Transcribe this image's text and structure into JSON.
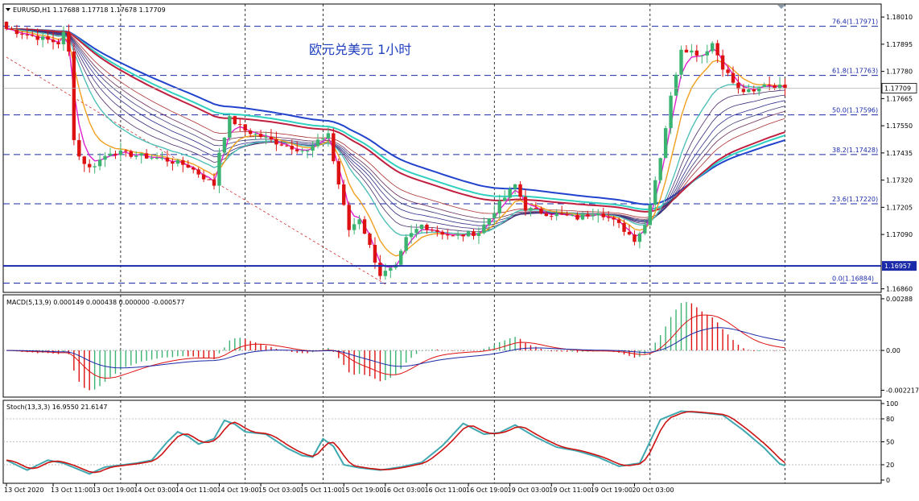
{
  "symbol_header": "EURUSD,H1  1.17688 1.17718 1.17678 1.17709",
  "chinese_title": "欧元兑美元  1小时",
  "colors": {
    "bull": "#3cb371",
    "bear": "#dd1111",
    "fib": "#1a2aa8",
    "ema_fast": "#dd22cc",
    "ema_orange": "#f0a020",
    "ema_teal": "#50c0b8",
    "ma_red": "#c02040",
    "ma_blue": "#2244cc",
    "macd_signal": "#dd1111",
    "macd_main": "#1a2aa8",
    "stoch_main": "#40a8b0",
    "stoch_signal": "#cc1111"
  },
  "chart_data": [
    {
      "type": "candlestick",
      "title": "EURUSD,H1",
      "ylim": [
        1.16845,
        1.18065
      ],
      "yticks": [
        "1.18010",
        "1.17895",
        "1.17780",
        "1.17665",
        "1.17550",
        "1.17435",
        "1.17320",
        "1.17205",
        "1.17090",
        "1.16860"
      ],
      "ytick_values": [
        1.1801,
        1.17895,
        1.1778,
        1.17665,
        1.1755,
        1.17435,
        1.1732,
        1.17205,
        1.1709,
        1.1686
      ],
      "current_price": "1.17709",
      "current_value": 1.17709,
      "hline_label": "1.16957",
      "hline_value": 1.16957,
      "fib_levels": [
        {
          "label": "76.4(1.17971)",
          "value": 1.17971
        },
        {
          "label": "61.8(1.17763)",
          "value": 1.17763
        },
        {
          "label": "50.0(1.17596)",
          "value": 1.17596
        },
        {
          "label": "38.2(1.17428)",
          "value": 1.17428
        },
        {
          "label": "23.6(1.17220)",
          "value": 1.1722
        },
        {
          "label": "0.0(1.16884)",
          "value": 1.16884
        }
      ],
      "keypoints": [
        [
          0,
          1.1796
        ],
        [
          10,
          1.179
        ],
        [
          11,
          1.1794
        ],
        [
          12,
          1.1786
        ],
        [
          13,
          1.175
        ],
        [
          14,
          1.1742
        ],
        [
          16,
          1.1737
        ],
        [
          20,
          1.1744
        ],
        [
          30,
          1.1741
        ],
        [
          35,
          1.1738
        ],
        [
          40,
          1.173
        ],
        [
          41,
          1.1744
        ],
        [
          43,
          1.1758
        ],
        [
          46,
          1.1753
        ],
        [
          52,
          1.1748
        ],
        [
          58,
          1.1744
        ],
        [
          62,
          1.1752
        ],
        [
          63,
          1.174
        ],
        [
          66,
          1.1711
        ],
        [
          68,
          1.1716
        ],
        [
          72,
          1.1692
        ],
        [
          75,
          1.1695
        ],
        [
          77,
          1.1707
        ],
        [
          80,
          1.1713
        ],
        [
          86,
          1.1708
        ],
        [
          91,
          1.171
        ],
        [
          95,
          1.1722
        ],
        [
          98,
          1.173
        ],
        [
          100,
          1.172
        ],
        [
          104,
          1.1718
        ],
        [
          110,
          1.1716
        ],
        [
          114,
          1.1719
        ],
        [
          118,
          1.1713
        ],
        [
          121,
          1.1707
        ],
        [
          123,
          1.1713
        ],
        [
          126,
          1.1742
        ],
        [
          128,
          1.1767
        ],
        [
          130,
          1.1788
        ],
        [
          134,
          1.1785
        ],
        [
          136,
          1.179
        ],
        [
          138,
          1.178
        ],
        [
          141,
          1.177
        ],
        [
          144,
          1.1769
        ],
        [
          146,
          1.1773
        ],
        [
          148,
          1.1772
        ],
        [
          150,
          1.17709
        ]
      ],
      "overlays": [
        {
          "name": "fast",
          "period": 3,
          "color": "#dd22cc"
        },
        {
          "name": "orange",
          "period": 7,
          "color": "#f0a020"
        },
        {
          "name": "teal",
          "period": 14,
          "color": "#50c0b8"
        },
        {
          "name": "ribbon1",
          "period": 18,
          "color": "#4a2a6a"
        },
        {
          "name": "ribbon2",
          "period": 22,
          "color": "#3a2a7a"
        },
        {
          "name": "ribbon3",
          "period": 26,
          "color": "#2a2a8a"
        },
        {
          "name": "ribbon4",
          "period": 30,
          "color": "#3a3a7a"
        },
        {
          "name": "ribbon5",
          "period": 34,
          "color": "#6a2a5a"
        },
        {
          "name": "ribbon6",
          "period": 40,
          "color": "#aa3030"
        },
        {
          "name": "slow_red",
          "period": 55,
          "color": "#c02040"
        },
        {
          "name": "slow_cyan",
          "period": 60,
          "color": "#30d0c0"
        },
        {
          "name": "slow_blue",
          "period": 70,
          "color": "#2244cc"
        }
      ]
    },
    {
      "type": "bar",
      "title": "MACD(5,13,9) 0.000149 0.000438 0.000000 -0.000577",
      "ylim": [
        -0.0026,
        0.0031
      ],
      "yticks": [
        "0.00288",
        "0.00",
        "-0.002217"
      ],
      "ytick_values": [
        0.00288,
        0.0,
        -0.002217
      ]
    },
    {
      "type": "line",
      "title": "Stoch(13,3,3) 16.9550 21.6147",
      "ylim": [
        0,
        100
      ],
      "yticks": [
        "100",
        "80",
        "50",
        "20",
        "0"
      ],
      "ytick_values": [
        100,
        80,
        50,
        20,
        0
      ],
      "keypoints": [
        [
          0,
          26
        ],
        [
          4,
          13
        ],
        [
          8,
          26
        ],
        [
          11,
          22
        ],
        [
          16,
          8
        ],
        [
          19,
          17
        ],
        [
          25,
          22
        ],
        [
          28,
          26
        ],
        [
          31,
          50
        ],
        [
          33,
          63
        ],
        [
          35,
          57
        ],
        [
          37,
          47
        ],
        [
          40,
          54
        ],
        [
          42,
          78
        ],
        [
          44,
          73
        ],
        [
          46,
          63
        ],
        [
          50,
          60
        ],
        [
          54,
          42
        ],
        [
          57,
          32
        ],
        [
          59,
          30
        ],
        [
          61,
          54
        ],
        [
          63,
          44
        ],
        [
          65,
          20
        ],
        [
          68,
          16
        ],
        [
          72,
          13
        ],
        [
          76,
          17
        ],
        [
          80,
          23
        ],
        [
          84,
          45
        ],
        [
          88,
          74
        ],
        [
          92,
          60
        ],
        [
          95,
          62
        ],
        [
          98,
          72
        ],
        [
          102,
          56
        ],
        [
          106,
          43
        ],
        [
          110,
          38
        ],
        [
          114,
          30
        ],
        [
          118,
          18
        ],
        [
          122,
          22
        ],
        [
          126,
          79
        ],
        [
          130,
          90
        ],
        [
          134,
          88
        ],
        [
          138,
          85
        ],
        [
          142,
          65
        ],
        [
          146,
          42
        ],
        [
          149,
          21
        ],
        [
          150,
          19
        ]
      ]
    }
  ],
  "x_axis": {
    "labels": [
      "13 Oct 2020",
      "13 Oct 11:00",
      "13 Oct 19:00",
      "14 Oct 03:00",
      "14 Oct 11:00",
      "14 Oct 19:00",
      "15 Oct 03:00",
      "15 Oct 11:00",
      "15 Oct 19:00",
      "16 Oct 03:00",
      "16 Oct 11:00",
      "16 Oct 19:00",
      "19 Oct 03:00",
      "19 Oct 11:00",
      "19 Oct 19:00",
      "20 Oct 03:00"
    ],
    "label_bars": [
      0,
      9,
      17,
      25,
      33,
      41,
      49,
      57,
      65,
      73,
      81,
      89,
      97,
      105,
      113,
      121
    ],
    "vlines_bars": [
      22,
      46,
      61,
      94,
      124,
      150
    ]
  }
}
